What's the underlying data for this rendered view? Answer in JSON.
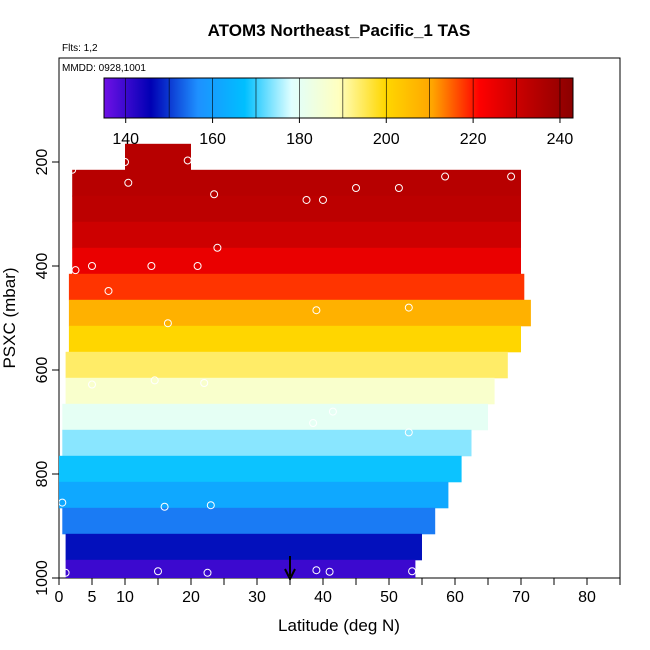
{
  "header": {
    "title": "ATOM3 Northeast_Pacific_1 TAS",
    "flights_label": "Flts: 1,2",
    "date_label": "MMDD: 0928,1001"
  },
  "chart_data": {
    "type": "heatmap",
    "title": "ATOM3 Northeast_Pacific_1 TAS",
    "xlabel": "Latitude (deg N)",
    "ylabel": "PSXC (mbar)",
    "xlim": [
      0,
      85
    ],
    "ylim": [
      1000,
      0
    ],
    "x_ticks": [
      0,
      5,
      10,
      20,
      30,
      40,
      50,
      60,
      70,
      80
    ],
    "y_ticks": [
      200,
      400,
      600,
      800,
      1000
    ],
    "colorbar": {
      "range": [
        135,
        243
      ],
      "ticks": [
        140,
        160,
        180,
        200,
        220,
        240
      ],
      "colors": [
        "#6f11e6",
        "#0000b4",
        "#1e90ff",
        "#00bfff",
        "#e0ffff",
        "#ffffc0",
        "#ffd700",
        "#ffa500",
        "#ff0000",
        "#c00000",
        "#8b0000"
      ]
    },
    "layers": [
      {
        "p_top": 165,
        "p_bot": 215,
        "lat_start": 10,
        "lat_end": 20,
        "tas": 234
      },
      {
        "p_top": 215,
        "p_bot": 265,
        "lat_start": 2,
        "lat_end": 70,
        "tas": 234
      },
      {
        "p_top": 265,
        "p_bot": 315,
        "lat_start": 2,
        "lat_end": 70,
        "tas": 233
      },
      {
        "p_top": 315,
        "p_bot": 365,
        "lat_start": 2,
        "lat_end": 70,
        "tas": 230
      },
      {
        "p_top": 365,
        "p_bot": 415,
        "lat_start": 2,
        "lat_end": 70,
        "tas": 225
      },
      {
        "p_top": 415,
        "p_bot": 465,
        "lat_start": 1.5,
        "lat_end": 70.5,
        "tas": 218
      },
      {
        "p_top": 465,
        "p_bot": 515,
        "lat_start": 1.5,
        "lat_end": 71.5,
        "tas": 208
      },
      {
        "p_top": 515,
        "p_bot": 565,
        "lat_start": 1.5,
        "lat_end": 70,
        "tas": 200
      },
      {
        "p_top": 565,
        "p_bot": 615,
        "lat_start": 1,
        "lat_end": 68,
        "tas": 194
      },
      {
        "p_top": 615,
        "p_bot": 665,
        "lat_start": 1,
        "lat_end": 66,
        "tas": 187
      },
      {
        "p_top": 665,
        "p_bot": 715,
        "lat_start": 0.5,
        "lat_end": 65,
        "tas": 180
      },
      {
        "p_top": 715,
        "p_bot": 765,
        "lat_start": 0.5,
        "lat_end": 62.5,
        "tas": 174
      },
      {
        "p_top": 765,
        "p_bot": 815,
        "lat_start": 0,
        "lat_end": 61,
        "tas": 168
      },
      {
        "p_top": 815,
        "p_bot": 865,
        "lat_start": 0,
        "lat_end": 59,
        "tas": 162
      },
      {
        "p_top": 865,
        "p_bot": 915,
        "lat_start": 0.5,
        "lat_end": 57,
        "tas": 155
      },
      {
        "p_top": 915,
        "p_bot": 965,
        "lat_start": 1,
        "lat_end": 55,
        "tas": 147
      },
      {
        "p_top": 965,
        "p_bot": 1010,
        "lat_start": 1,
        "lat_end": 54,
        "tas": 140
      }
    ],
    "points": [
      {
        "lat": 2,
        "p": 215
      },
      {
        "lat": 10,
        "p": 200
      },
      {
        "lat": 10.5,
        "p": 240
      },
      {
        "lat": 19.5,
        "p": 197
      },
      {
        "lat": 23.5,
        "p": 262
      },
      {
        "lat": 37.5,
        "p": 273
      },
      {
        "lat": 40,
        "p": 273
      },
      {
        "lat": 45,
        "p": 250
      },
      {
        "lat": 51.5,
        "p": 250
      },
      {
        "lat": 58.5,
        "p": 228
      },
      {
        "lat": 68.5,
        "p": 228
      },
      {
        "lat": 24,
        "p": 365
      },
      {
        "lat": 2.5,
        "p": 408
      },
      {
        "lat": 5,
        "p": 400
      },
      {
        "lat": 14,
        "p": 400
      },
      {
        "lat": 21,
        "p": 400
      },
      {
        "lat": 7.5,
        "p": 448
      },
      {
        "lat": 16.5,
        "p": 510
      },
      {
        "lat": 39,
        "p": 485
      },
      {
        "lat": 53,
        "p": 480
      },
      {
        "lat": 5,
        "p": 628
      },
      {
        "lat": 14.5,
        "p": 620
      },
      {
        "lat": 22,
        "p": 625
      },
      {
        "lat": 41.5,
        "p": 680
      },
      {
        "lat": 38.5,
        "p": 702
      },
      {
        "lat": 53,
        "p": 720
      },
      {
        "lat": 0.5,
        "p": 855
      },
      {
        "lat": 16,
        "p": 863
      },
      {
        "lat": 23,
        "p": 860
      },
      {
        "lat": 1,
        "p": 990
      },
      {
        "lat": 15,
        "p": 987
      },
      {
        "lat": 22.5,
        "p": 990
      },
      {
        "lat": 39,
        "p": 985
      },
      {
        "lat": 41,
        "p": 988
      },
      {
        "lat": 47.5,
        "p": 1010
      },
      {
        "lat": 53.5,
        "p": 987
      }
    ],
    "marker": {
      "lat": 35,
      "p": 1000
    }
  }
}
